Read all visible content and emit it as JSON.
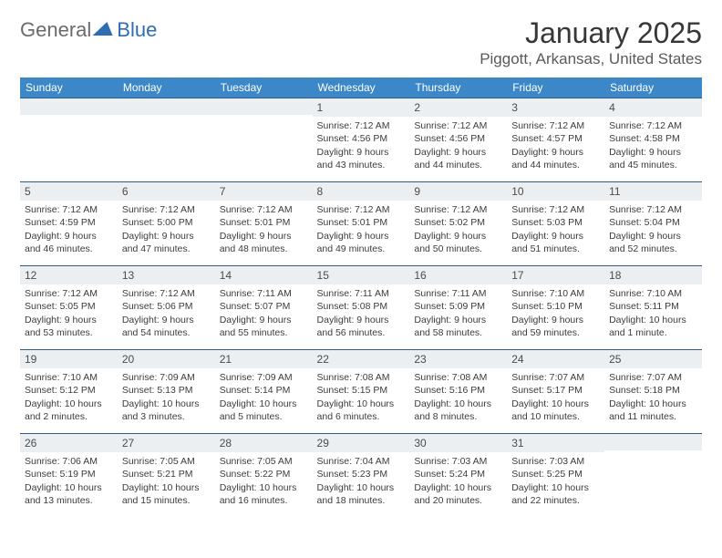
{
  "logo": {
    "part1": "General",
    "part2": "Blue"
  },
  "title": "January 2025",
  "location": "Piggott, Arkansas, United States",
  "colors": {
    "header_bg": "#3b87c8",
    "header_text": "#ffffff",
    "grid_line": "#2f5d88",
    "daynum_bg": "#eceff1",
    "text": "#3c3c3c",
    "title_color": "#373737",
    "logo_gray": "#6b6b6b",
    "logo_blue": "#2f6db3"
  },
  "days_of_week": [
    "Sunday",
    "Monday",
    "Tuesday",
    "Wednesday",
    "Thursday",
    "Friday",
    "Saturday"
  ],
  "weeks": [
    [
      null,
      null,
      null,
      {
        "d": "1",
        "sr": "7:12 AM",
        "ss": "4:56 PM",
        "dl": "9 hours and 43 minutes."
      },
      {
        "d": "2",
        "sr": "7:12 AM",
        "ss": "4:56 PM",
        "dl": "9 hours and 44 minutes."
      },
      {
        "d": "3",
        "sr": "7:12 AM",
        "ss": "4:57 PM",
        "dl": "9 hours and 44 minutes."
      },
      {
        "d": "4",
        "sr": "7:12 AM",
        "ss": "4:58 PM",
        "dl": "9 hours and 45 minutes."
      }
    ],
    [
      {
        "d": "5",
        "sr": "7:12 AM",
        "ss": "4:59 PM",
        "dl": "9 hours and 46 minutes."
      },
      {
        "d": "6",
        "sr": "7:12 AM",
        "ss": "5:00 PM",
        "dl": "9 hours and 47 minutes."
      },
      {
        "d": "7",
        "sr": "7:12 AM",
        "ss": "5:01 PM",
        "dl": "9 hours and 48 minutes."
      },
      {
        "d": "8",
        "sr": "7:12 AM",
        "ss": "5:01 PM",
        "dl": "9 hours and 49 minutes."
      },
      {
        "d": "9",
        "sr": "7:12 AM",
        "ss": "5:02 PM",
        "dl": "9 hours and 50 minutes."
      },
      {
        "d": "10",
        "sr": "7:12 AM",
        "ss": "5:03 PM",
        "dl": "9 hours and 51 minutes."
      },
      {
        "d": "11",
        "sr": "7:12 AM",
        "ss": "5:04 PM",
        "dl": "9 hours and 52 minutes."
      }
    ],
    [
      {
        "d": "12",
        "sr": "7:12 AM",
        "ss": "5:05 PM",
        "dl": "9 hours and 53 minutes."
      },
      {
        "d": "13",
        "sr": "7:12 AM",
        "ss": "5:06 PM",
        "dl": "9 hours and 54 minutes."
      },
      {
        "d": "14",
        "sr": "7:11 AM",
        "ss": "5:07 PM",
        "dl": "9 hours and 55 minutes."
      },
      {
        "d": "15",
        "sr": "7:11 AM",
        "ss": "5:08 PM",
        "dl": "9 hours and 56 minutes."
      },
      {
        "d": "16",
        "sr": "7:11 AM",
        "ss": "5:09 PM",
        "dl": "9 hours and 58 minutes."
      },
      {
        "d": "17",
        "sr": "7:10 AM",
        "ss": "5:10 PM",
        "dl": "9 hours and 59 minutes."
      },
      {
        "d": "18",
        "sr": "7:10 AM",
        "ss": "5:11 PM",
        "dl": "10 hours and 1 minute."
      }
    ],
    [
      {
        "d": "19",
        "sr": "7:10 AM",
        "ss": "5:12 PM",
        "dl": "10 hours and 2 minutes."
      },
      {
        "d": "20",
        "sr": "7:09 AM",
        "ss": "5:13 PM",
        "dl": "10 hours and 3 minutes."
      },
      {
        "d": "21",
        "sr": "7:09 AM",
        "ss": "5:14 PM",
        "dl": "10 hours and 5 minutes."
      },
      {
        "d": "22",
        "sr": "7:08 AM",
        "ss": "5:15 PM",
        "dl": "10 hours and 6 minutes."
      },
      {
        "d": "23",
        "sr": "7:08 AM",
        "ss": "5:16 PM",
        "dl": "10 hours and 8 minutes."
      },
      {
        "d": "24",
        "sr": "7:07 AM",
        "ss": "5:17 PM",
        "dl": "10 hours and 10 minutes."
      },
      {
        "d": "25",
        "sr": "7:07 AM",
        "ss": "5:18 PM",
        "dl": "10 hours and 11 minutes."
      }
    ],
    [
      {
        "d": "26",
        "sr": "7:06 AM",
        "ss": "5:19 PM",
        "dl": "10 hours and 13 minutes."
      },
      {
        "d": "27",
        "sr": "7:05 AM",
        "ss": "5:21 PM",
        "dl": "10 hours and 15 minutes."
      },
      {
        "d": "28",
        "sr": "7:05 AM",
        "ss": "5:22 PM",
        "dl": "10 hours and 16 minutes."
      },
      {
        "d": "29",
        "sr": "7:04 AM",
        "ss": "5:23 PM",
        "dl": "10 hours and 18 minutes."
      },
      {
        "d": "30",
        "sr": "7:03 AM",
        "ss": "5:24 PM",
        "dl": "10 hours and 20 minutes."
      },
      {
        "d": "31",
        "sr": "7:03 AM",
        "ss": "5:25 PM",
        "dl": "10 hours and 22 minutes."
      },
      null
    ]
  ],
  "labels": {
    "sunrise": "Sunrise:",
    "sunset": "Sunset:",
    "daylight": "Daylight:"
  }
}
